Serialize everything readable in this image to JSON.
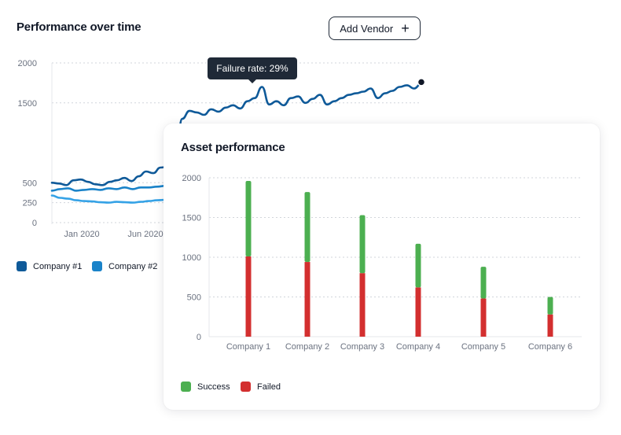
{
  "perf_card": {
    "title": "Performance over time",
    "add_vendor_label": "Add Vendor",
    "tooltip": "Failure rate: 29%",
    "legend": [
      {
        "name": "Company #1",
        "color": "#0f5a99"
      },
      {
        "name": "Company #2",
        "color": "#1a83c9"
      }
    ]
  },
  "asset_card": {
    "title": "Asset performance",
    "legend": [
      {
        "name": "Success",
        "color": "#4caf50"
      },
      {
        "name": "Failed",
        "color": "#d32f2f"
      }
    ]
  },
  "chart_data": [
    {
      "type": "line",
      "title": "Performance over time",
      "ylim": [
        0,
        2000
      ],
      "y_ticks": [
        0,
        250,
        500,
        1500,
        2000
      ],
      "x_ticks": [
        "Jan 2020",
        "Jun 2020"
      ],
      "grid": true,
      "legend_position": "bottom-left",
      "series": [
        {
          "name": "Company #1",
          "color": "#0f5a99",
          "values": [
            500,
            490,
            470,
            530,
            540,
            510,
            480,
            470,
            510,
            530,
            560,
            520,
            580,
            640,
            620,
            690,
            700,
            760,
            1300,
            1400,
            1380,
            1350,
            1420,
            1390,
            1440,
            1470,
            1430,
            1520,
            1560,
            1700,
            1480,
            1520,
            1470,
            1560,
            1580,
            1500,
            1550,
            1600,
            1480,
            1520,
            1560,
            1600,
            1620,
            1640,
            1680,
            1560,
            1620,
            1650,
            1700,
            1720,
            1680,
            1740
          ]
        },
        {
          "name": "Company #2",
          "color": "#1a83c9",
          "values": [
            400,
            420,
            430,
            400,
            410,
            420,
            410,
            430,
            420,
            440,
            420,
            440,
            440,
            450,
            460
          ]
        },
        {
          "name": "",
          "color": "#35a2e6",
          "values": [
            340,
            310,
            300,
            280,
            270,
            265,
            255,
            250,
            260,
            255,
            250,
            260,
            270,
            280,
            285
          ]
        }
      ]
    },
    {
      "type": "bar",
      "stacked": true,
      "title": "Asset performance",
      "categories": [
        "Company 1",
        "Company 2",
        "Company 3",
        "Company 4",
        "Company 5",
        "Company 6"
      ],
      "ylim": [
        0,
        2000
      ],
      "y_ticks": [
        0,
        500,
        1000,
        1500,
        2000
      ],
      "grid": true,
      "legend_position": "bottom-left",
      "series": [
        {
          "name": "Failed",
          "color": "#d32f2f",
          "values": [
            1010,
            940,
            800,
            620,
            480,
            280
          ]
        },
        {
          "name": "Success",
          "color": "#4caf50",
          "values": [
            950,
            880,
            730,
            550,
            400,
            220
          ]
        }
      ]
    }
  ]
}
